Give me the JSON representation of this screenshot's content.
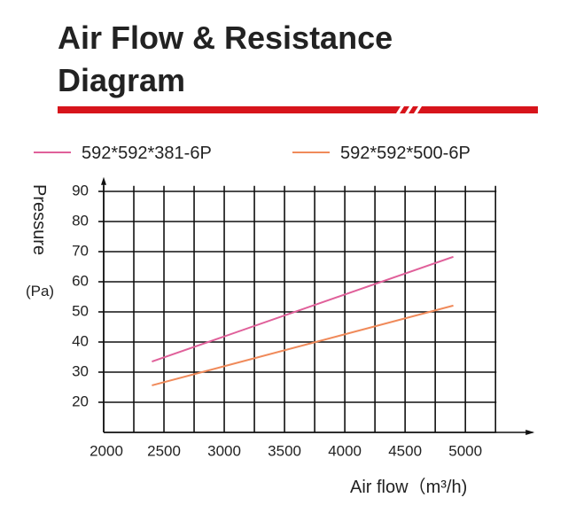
{
  "chart_data": {
    "type": "line",
    "title_lines": [
      "Air Flow & Resistance",
      "Diagram"
    ],
    "y_label": "Pressure",
    "y_unit": "(Pa)",
    "x_label": "Air flow（m³/h)",
    "xlim": [
      2000,
      5500
    ],
    "ylim": [
      10,
      93
    ],
    "xticks": [
      2000,
      2500,
      3000,
      3500,
      4000,
      4500,
      5000
    ],
    "xgrid": [
      2000,
      2250,
      2500,
      2750,
      3000,
      3250,
      3500,
      3750,
      4000,
      4250,
      4500,
      4750,
      5000,
      5250
    ],
    "yticks": [
      20,
      30,
      40,
      50,
      60,
      70,
      80,
      90
    ],
    "ygrid": [
      10,
      20,
      30,
      40,
      50,
      60,
      70,
      80,
      90
    ],
    "grid": true,
    "series": [
      {
        "name": "592*592*381-6P",
        "color": "#e0609a",
        "x": [
          2400,
          4900
        ],
        "values": [
          33.5,
          68.3
        ]
      },
      {
        "name": "592*592*500-6P",
        "color": "#f08a5a",
        "x": [
          2400,
          4900
        ],
        "values": [
          25.6,
          52.1
        ]
      }
    ]
  }
}
